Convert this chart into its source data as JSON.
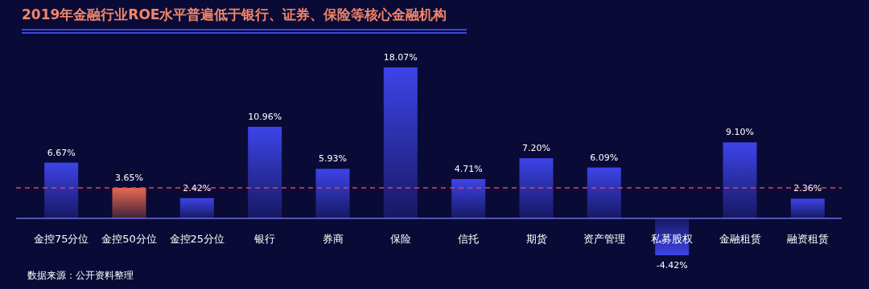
{
  "chart_data": {
    "type": "bar",
    "title": "2019年金融行业ROE水平普遍低于银行、证券、保险等核心金融机构",
    "categories": [
      "金控75分位",
      "金控50分位",
      "金控25分位",
      "银行",
      "券商",
      "保险",
      "信托",
      "期货",
      "资产管理",
      "私募股权",
      "金融租赁",
      "融资租赁"
    ],
    "values": [
      6.67,
      3.65,
      2.42,
      10.96,
      5.93,
      18.07,
      4.71,
      7.2,
      6.09,
      -4.42,
      9.1,
      2.36
    ],
    "value_labels": [
      "6.67%",
      "3.65%",
      "2.42%",
      "10.96%",
      "5.93%",
      "18.07%",
      "4.71%",
      "7.20%",
      "6.09%",
      "-4.42%",
      "9.10%",
      "2.36%"
    ],
    "colors": [
      "#3d44e8",
      "#e8694f",
      "#3d44e8",
      "#3d44e8",
      "#3d44e8",
      "#3d44e8",
      "#3d44e8",
      "#3d44e8",
      "#3d44e8",
      "#3d44e8",
      "#3d44e8",
      "#3d44e8"
    ],
    "ref_lines": [
      {
        "axis": "y",
        "value": 3.65,
        "color": "#e8405a",
        "line_style": "dashed"
      }
    ],
    "annotations": [
      "数据来源：公开资料整理"
    ]
  }
}
